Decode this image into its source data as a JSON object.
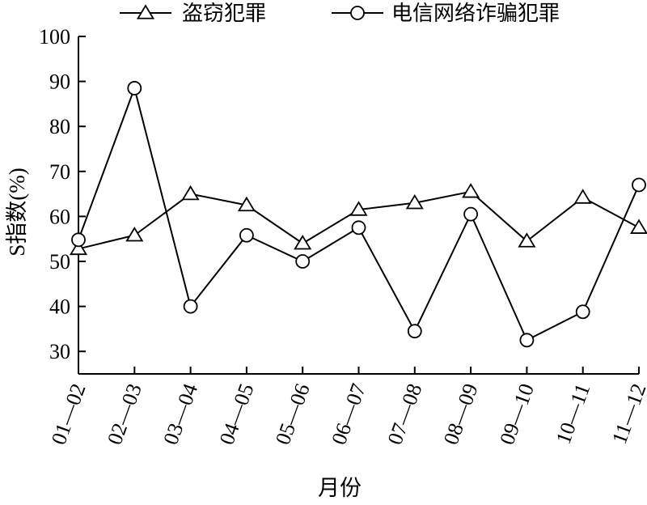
{
  "chart_data": {
    "type": "line",
    "title": "",
    "xlabel": "月份",
    "ylabel": "S指数(%)",
    "categories": [
      "01—02",
      "02—03",
      "03—04",
      "04—05",
      "05—06",
      "06—07",
      "07—08",
      "08—09",
      "09—10",
      "10—11",
      "11—12"
    ],
    "ylim": [
      25,
      100
    ],
    "yticks": [
      30,
      40,
      50,
      60,
      70,
      80,
      90,
      100
    ],
    "grid": false,
    "legend_position": "top",
    "series": [
      {
        "name": "盗窃犯罪",
        "marker": "triangle",
        "values": [
          52.8,
          55.8,
          65.0,
          62.5,
          54.0,
          61.5,
          63.0,
          65.5,
          54.5,
          64.2,
          57.5
        ]
      },
      {
        "name": "电信网络诈骗犯罪",
        "marker": "circle",
        "values": [
          54.8,
          88.5,
          40.0,
          55.8,
          50.0,
          57.5,
          34.5,
          60.5,
          32.5,
          38.8,
          67.0
        ]
      }
    ]
  }
}
